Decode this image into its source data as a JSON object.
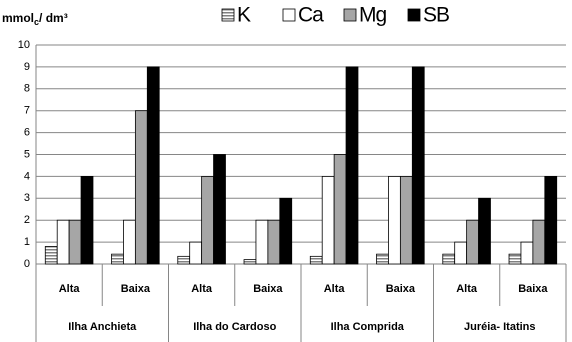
{
  "chart_data": {
    "type": "bar",
    "y_label": {
      "main": "mmol",
      "sub": "c",
      "rest": "/ dm³"
    },
    "categories": [
      "Alta",
      "Baixa",
      "Alta",
      "Baixa",
      "Alta",
      "Baixa",
      "Alta",
      "Baixa"
    ],
    "groups": [
      "Ilha Anchieta",
      "Ilha do Cardoso",
      "Ilha  Comprida",
      "Juréia- Itatins"
    ],
    "series": [
      {
        "name": "K",
        "color": "#808080",
        "pattern": "horizontal-stripes",
        "values": [
          0.8,
          0.45,
          0.35,
          0.2,
          0.35,
          0.45,
          0.45,
          0.45
        ]
      },
      {
        "name": "Ca",
        "color": "#ffffff",
        "values": [
          2,
          2,
          1,
          2,
          4,
          4,
          1,
          1
        ]
      },
      {
        "name": "Mg",
        "color": "#a6a6a6",
        "values": [
          2,
          7,
          4,
          2,
          5,
          4,
          2,
          2
        ]
      },
      {
        "name": "SB",
        "color": "#000000",
        "values": [
          4,
          9,
          5,
          3,
          9,
          9,
          3,
          4
        ]
      }
    ],
    "ylim": [
      0,
      10
    ],
    "yticks": [
      0,
      1,
      2,
      3,
      4,
      5,
      6,
      7,
      8,
      9,
      10
    ],
    "grid": true,
    "legend": "top"
  }
}
